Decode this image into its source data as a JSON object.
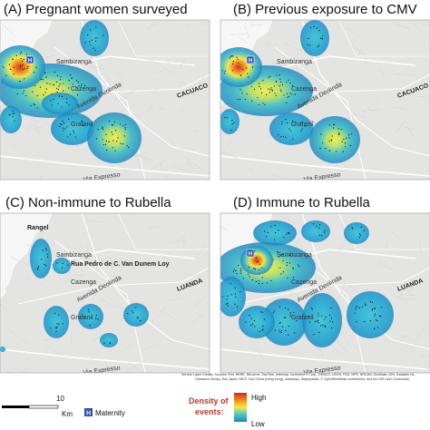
{
  "panels": [
    {
      "title": "(A) Pregnant women surveyed",
      "labels": [
        "Sambizanga",
        "Cazenga",
        "Avenida Deolinda",
        "Grafanil",
        "Via Expresso",
        "CACUACO"
      ]
    },
    {
      "title": "(B) Previous exposure to CMV",
      "labels": [
        "Sambizanga",
        "Cazenga",
        "Avenida Deolinda",
        "Grafanil",
        "Via Expresso",
        "CACUACO"
      ]
    },
    {
      "title": "(C) Non-immune to Rubella",
      "labels": [
        "Sambizanga",
        "Cazenga",
        "Avenida Deolinda",
        "Grafanil",
        "Via Expresso",
        "LUANDA",
        "Rangel",
        "Rua Pedro de C. Van Dunem Loy"
      ]
    },
    {
      "title": "(D) Immune to Rubella",
      "labels": [
        "Sambizanga",
        "Cazenga",
        "Avenida Deolinda",
        "Grafanil",
        "Via Expresso",
        "LUANDA"
      ]
    }
  ],
  "legend": {
    "scale_value": "10",
    "scale_unit": "Km",
    "maternity_icon": "H",
    "maternity": "Maternity",
    "density_title": [
      "Density of",
      "events:"
    ],
    "high": "High",
    "low": "Low"
  },
  "credits": [
    "Service Layer Credits: Sources: Esri, HERE, DeLorme, TomTom, Intermap, increment P Corp., GEBCO, USGS, FAO, NPS, NRCAN, GeoBase, IGN, Kadaster NL,",
    "Ordnance Survey, Esri Japan, METI, Esri China (Hong Kong), swisstopo, Mapmyindia, © OpenStreetMap contributors, and the GIS User Community"
  ]
}
